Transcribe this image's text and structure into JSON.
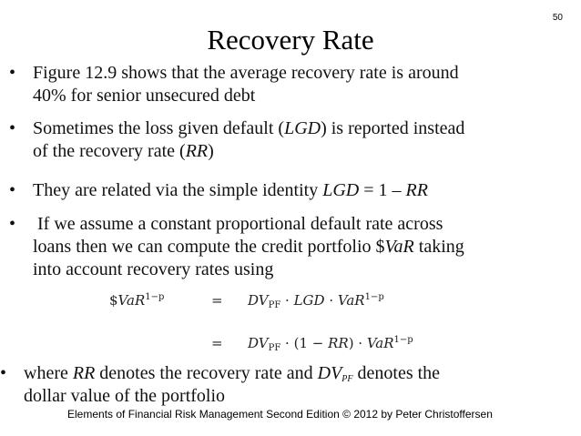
{
  "page_number": "50",
  "title": "Recovery Rate",
  "bullets": [
    {
      "marker": "•",
      "line1": "Figure 12.9 shows that the average recovery rate is around",
      "line2": "40% for senior unsecured debt"
    },
    {
      "marker": "•",
      "b2_pre": "Sometimes the loss given default (",
      "b2_lgd": "LGD",
      "b2_mid": ") is reported instead",
      "b2_l2_pre": "of the recovery rate (",
      "b2_rr": "RR",
      "b2_l2_post": ")"
    },
    {
      "marker": "•",
      "b3_pre": "They are related via the simple identity ",
      "b3_lgd": "LGD",
      "b3_eq": " = 1 – ",
      "b3_rr": "RR"
    },
    {
      "marker": "•",
      "line1": " If we assume a constant proportional default rate across",
      "b4_l2_pre": "loans then we can compute the credit portfolio $",
      "b4_var": "VaR",
      "b4_l2_post": " taking",
      "line3": "into account recovery rates using"
    },
    {
      "marker": "•",
      "b5_pre": "where ",
      "b5_rr": "RR",
      "b5_mid": " denotes the recovery rate and ",
      "b5_dv": "DV",
      "b5_sub": "PF",
      "b5_post": " denotes the",
      "line2": "dollar value of the portfolio"
    }
  ],
  "equation": {
    "lhs_dollar": "$",
    "lhs_var": "VaR",
    "lhs_sup": "1−p",
    "eq_sign": "=",
    "row1_dv": "DV",
    "row1_sub": "PF",
    "row1_mid": " · ",
    "row1_lgd": "LGD",
    "row1_dot": " · ",
    "row1_var": "VaR",
    "row1_sup": "1−p",
    "row2_dv": "DV",
    "row2_sub": "PF",
    "row2_mid": " · (1 − ",
    "row2_rr": "RR",
    "row2_close": ") · ",
    "row2_var": "VaR",
    "row2_sup": "1−p"
  },
  "footer": "Elements of Financial Risk Management Second Edition © 2012  by Peter Christoffersen"
}
